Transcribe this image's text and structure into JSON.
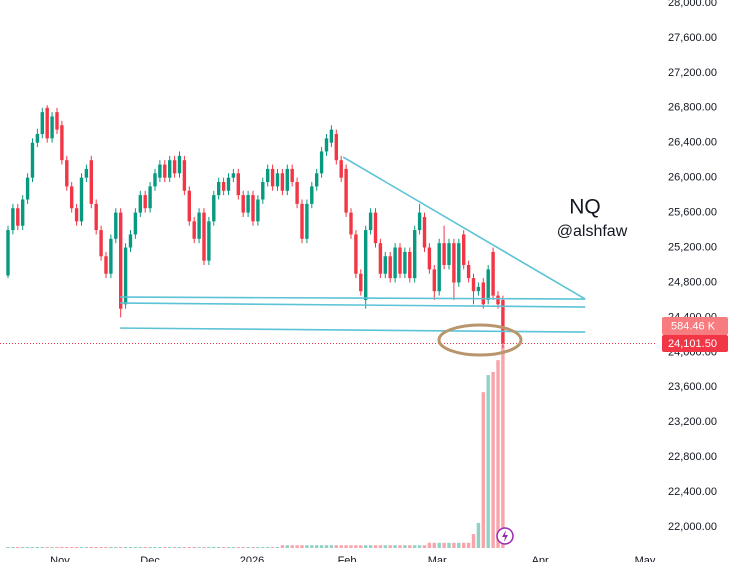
{
  "chart_data": {
    "type": "candlestick",
    "symbol": "NQ",
    "author": "@alshfaw",
    "up_color": "#089981",
    "down_color": "#f23645",
    "candles": [
      [
        24880,
        25450,
        24850,
        25400
      ],
      [
        25400,
        25700,
        25350,
        25650
      ],
      [
        25650,
        25700,
        25400,
        25450
      ],
      [
        25450,
        25800,
        25400,
        25750
      ],
      [
        25750,
        26050,
        25700,
        26000
      ],
      [
        26000,
        26450,
        25950,
        26400
      ],
      [
        26400,
        26560,
        26350,
        26500
      ],
      [
        26500,
        26800,
        26450,
        26750
      ],
      [
        26800,
        26830,
        26400,
        26450
      ],
      [
        26450,
        26750,
        26400,
        26700
      ],
      [
        26750,
        26800,
        26500,
        26550
      ],
      [
        26600,
        26650,
        26150,
        26200
      ],
      [
        26200,
        26250,
        25850,
        25900
      ],
      [
        25900,
        25950,
        25600,
        25650
      ],
      [
        25650,
        25700,
        25450,
        25500
      ],
      [
        25500,
        26050,
        25450,
        26000
      ],
      [
        26000,
        26150,
        25950,
        26100
      ],
      [
        26200,
        26250,
        25650,
        25700
      ],
      [
        25700,
        25750,
        25350,
        25400
      ],
      [
        25400,
        25450,
        25050,
        25100
      ],
      [
        25100,
        25150,
        24850,
        24900
      ],
      [
        24900,
        25350,
        24850,
        25300
      ],
      [
        25300,
        25650,
        25250,
        25600
      ],
      [
        25600,
        25650,
        24400,
        24500
      ],
      [
        24550,
        25250,
        24500,
        25200
      ],
      [
        25200,
        25400,
        25150,
        25350
      ],
      [
        25350,
        25650,
        25300,
        25600
      ],
      [
        25600,
        25850,
        25550,
        25800
      ],
      [
        25800,
        25850,
        25600,
        25650
      ],
      [
        25650,
        25950,
        25600,
        25900
      ],
      [
        25900,
        26100,
        25850,
        26050
      ],
      [
        26000,
        26200,
        25950,
        26150
      ],
      [
        26150,
        26200,
        25950,
        26000
      ],
      [
        26000,
        26250,
        25950,
        26200
      ],
      [
        26200,
        26250,
        26000,
        26050
      ],
      [
        26050,
        26300,
        26000,
        26250
      ],
      [
        26200,
        26250,
        25800,
        25850
      ],
      [
        25850,
        25900,
        25450,
        25500
      ],
      [
        25500,
        25550,
        25250,
        25300
      ],
      [
        25300,
        25650,
        25250,
        25600
      ],
      [
        25600,
        25650,
        25000,
        25050
      ],
      [
        25050,
        25550,
        25000,
        25500
      ],
      [
        25500,
        25850,
        25450,
        25800
      ],
      [
        25800,
        26000,
        25750,
        25950
      ],
      [
        25950,
        26000,
        25800,
        25850
      ],
      [
        25850,
        26050,
        25800,
        26000
      ],
      [
        26000,
        26100,
        25950,
        26050
      ],
      [
        26050,
        26100,
        25750,
        25800
      ],
      [
        25800,
        25850,
        25550,
        25600
      ],
      [
        25600,
        25850,
        25550,
        25800
      ],
      [
        25800,
        25850,
        25450,
        25500
      ],
      [
        25500,
        25800,
        25450,
        25750
      ],
      [
        25750,
        26000,
        25700,
        25950
      ],
      [
        25950,
        26150,
        25900,
        26100
      ],
      [
        26100,
        26150,
        25850,
        25900
      ],
      [
        25900,
        26100,
        25850,
        26050
      ],
      [
        26050,
        26100,
        25800,
        25850
      ],
      [
        25850,
        26150,
        25800,
        26100
      ],
      [
        26100,
        26150,
        25900,
        25950
      ],
      [
        25950,
        26000,
        25650,
        25700
      ],
      [
        25700,
        25750,
        25250,
        25300
      ],
      [
        25300,
        25750,
        25250,
        25700
      ],
      [
        25700,
        25950,
        25650,
        25900
      ],
      [
        25900,
        26100,
        25850,
        26050
      ],
      [
        26050,
        26350,
        26000,
        26300
      ],
      [
        26300,
        26500,
        26250,
        26450
      ],
      [
        26400,
        26600,
        26350,
        26550
      ],
      [
        26500,
        26550,
        26150,
        26200
      ],
      [
        26200,
        26250,
        25950,
        26000
      ],
      [
        26100,
        26150,
        25550,
        25600
      ],
      [
        25600,
        25650,
        25300,
        25350
      ],
      [
        25350,
        25400,
        24850,
        24900
      ],
      [
        24900,
        24950,
        24650,
        24700
      ],
      [
        24600,
        25450,
        24500,
        25400
      ],
      [
        25400,
        25650,
        25350,
        25600
      ],
      [
        25600,
        25650,
        25200,
        25250
      ],
      [
        25250,
        25300,
        24850,
        24900
      ],
      [
        24900,
        25150,
        24850,
        25100
      ],
      [
        25100,
        25150,
        24800,
        24850
      ],
      [
        24850,
        25250,
        24800,
        25200
      ],
      [
        25200,
        25250,
        24850,
        24900
      ],
      [
        24900,
        25200,
        24850,
        25150
      ],
      [
        25150,
        25200,
        24800,
        24850
      ],
      [
        24850,
        25450,
        24800,
        25400
      ],
      [
        25400,
        25700,
        25350,
        25600
      ],
      [
        25550,
        25600,
        25150,
        25200
      ],
      [
        25200,
        25250,
        24900,
        24950
      ],
      [
        24950,
        25000,
        24600,
        24700
      ],
      [
        24700,
        25300,
        24650,
        25250
      ],
      [
        25250,
        25450,
        24950,
        25000
      ],
      [
        25000,
        25300,
        24950,
        25250
      ],
      [
        25250,
        25300,
        24600,
        24800
      ],
      [
        24800,
        25300,
        24750,
        25250
      ],
      [
        25350,
        25400,
        24950,
        25000
      ],
      [
        25000,
        25050,
        24800,
        24850
      ],
      [
        24850,
        24900,
        24550,
        24700
      ],
      [
        24700,
        24800,
        24650,
        24750
      ],
      [
        24800,
        24850,
        24500,
        24550
      ],
      [
        24600,
        25000,
        24550,
        24950
      ],
      [
        25150,
        25200,
        24600,
        24650
      ],
      [
        24650,
        24700,
        24500,
        24550
      ],
      [
        24600,
        24650,
        24050,
        24101.5
      ]
    ],
    "volume": [
      3,
      3,
      3,
      3,
      3,
      3,
      3,
      3,
      3,
      3,
      3,
      3,
      3,
      3,
      3,
      3,
      3,
      3,
      3,
      3,
      3,
      3,
      3,
      3,
      3,
      3,
      3,
      3,
      3,
      3,
      3,
      3,
      3,
      3,
      3,
      3,
      3,
      3,
      3,
      3,
      3,
      3,
      3,
      3,
      3,
      3,
      3,
      3,
      3,
      3,
      3,
      3,
      3,
      3,
      3,
      3,
      8,
      8,
      8,
      8,
      8,
      8,
      8,
      8,
      8,
      8,
      8,
      8,
      8,
      8,
      8,
      8,
      8,
      8,
      8,
      8,
      8,
      8,
      8,
      8,
      8,
      8,
      8,
      8,
      8,
      8,
      15,
      15,
      15,
      15,
      15,
      15,
      15,
      15,
      15,
      40,
      72,
      448,
      497,
      506,
      540,
      584.46
    ],
    "volume_label": "584.46 K",
    "last_price_label": "24,101.50",
    "trendlines": [
      {
        "color": "#5cc3d6",
        "x": [
          68.4,
          117.8
        ],
        "y": [
          26236,
          24610
        ]
      },
      {
        "color": "#5cc3d6",
        "x": [
          22.9,
          117.8
        ],
        "y": [
          24633,
          24610
        ]
      },
      {
        "color": "#5cc3d6",
        "x": [
          22.9,
          117.8
        ],
        "y": [
          24565,
          24519
        ]
      },
      {
        "color": "#5cc3d6",
        "x": [
          22.9,
          117.8
        ],
        "y": [
          24278,
          24232
        ]
      }
    ],
    "xlim": [
      -1.63,
      132.04
    ],
    "xticks": [
      {
        "value": 10.6,
        "label": "Nov"
      },
      {
        "value": 29,
        "label": "Dec"
      },
      {
        "value": 49.8,
        "label": "2026"
      },
      {
        "value": 69.2,
        "label": "Feb"
      },
      {
        "value": 87.6,
        "label": "Mar"
      },
      {
        "value": 108.6,
        "label": "Apr"
      },
      {
        "value": 130,
        "label": "May"
      }
    ],
    "ylim": [
      21760,
      28034
    ],
    "y2lim": [
      0,
      1575
    ],
    "yticks": [
      {
        "value": 22000,
        "label": "22,000.00"
      },
      {
        "value": 22400,
        "label": "22,400.00"
      },
      {
        "value": 22800,
        "label": "22,800.00"
      },
      {
        "value": 23200,
        "label": "23,200.00"
      },
      {
        "value": 23600,
        "label": "23,600.00"
      },
      {
        "value": 24000,
        "label": "24,000.00"
      },
      {
        "value": 24400,
        "label": "24,400.00"
      },
      {
        "value": 24800,
        "label": "24,800.00"
      },
      {
        "value": 25200,
        "label": "25,200.00"
      },
      {
        "value": 25600,
        "label": "25,600.00"
      },
      {
        "value": 26000,
        "label": "26,000.00"
      },
      {
        "value": 26400,
        "label": "26,400.00"
      },
      {
        "value": 26800,
        "label": "26,800.00"
      },
      {
        "value": 27200,
        "label": "27,200.00"
      },
      {
        "value": 27600,
        "label": "27,600.00"
      },
      {
        "value": 28000,
        "label": "28,000.00"
      }
    ],
    "grid": false
  }
}
